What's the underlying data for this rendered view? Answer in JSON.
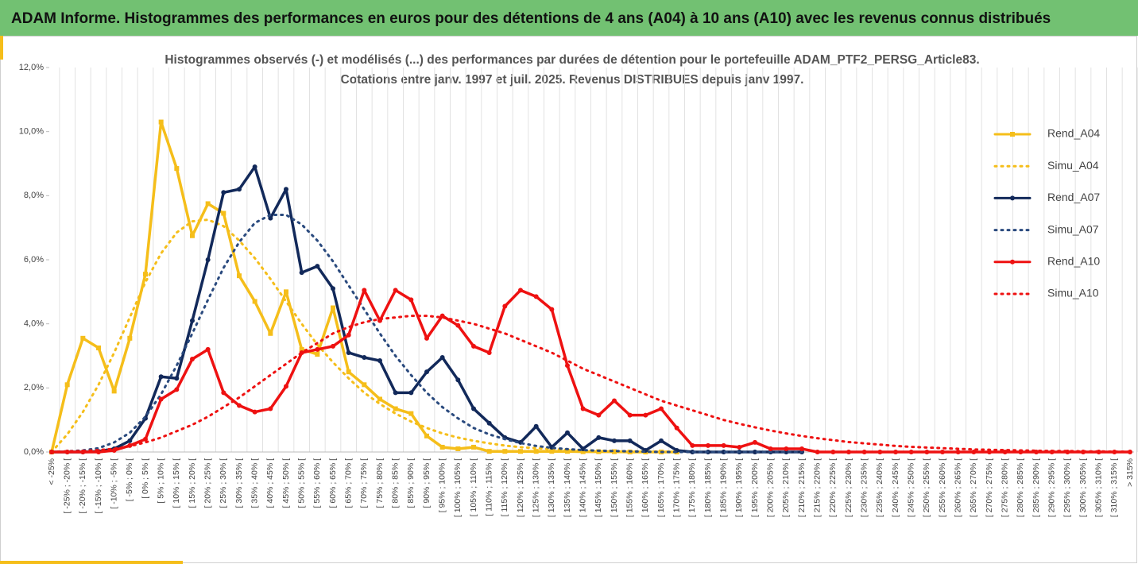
{
  "header": {
    "title": "ADAM Informe. Histogrammes des performances en euros pour des détentions de 4 ans (A04) à 10 ans (A10) avec les revenus connus distribués"
  },
  "chart_data": {
    "type": "line",
    "title": "Histogrammes observés (-) et modélisés (...) des performances par durées de détention pour le portefeuille ADAM_PTF2_PERSG_Article83.",
    "subtitle": "Cotations entre janv. 1997 et juil. 2025. Revenus DISTRIBUES depuis janv 1997.",
    "categories": [
      "< -25%",
      "[ -25% ; -20% [",
      "[ -20% ; -15% [",
      "[ -15% ; -10% [",
      "[ -10% ; -5% [",
      "[ -5% ; 0% [",
      "[ 0% ; 5% [",
      "[ 5% ; 10% [",
      "[ 10% ; 15% [",
      "[ 15% ; 20% [",
      "[ 20% ; 25% [",
      "[ 25% ; 30% [",
      "[ 30% ; 35% [",
      "[ 35% ; 40% [",
      "[ 40% ; 45% [",
      "[ 45% ; 50% [",
      "[ 50% ; 55% [",
      "[ 55% ; 60% [",
      "[ 60% ; 65% [",
      "[ 65% ; 70% [",
      "[ 70% ; 75% [",
      "[ 75% ; 80% [",
      "[ 80% ; 85% [",
      "[ 85% ; 90% [",
      "[ 90% ; 95% [",
      "[ 95% ; 100% [",
      "[ 100% ; 105% [",
      "[ 105% ; 110% [",
      "[ 110% ; 115% [",
      "[ 115% ; 120% [",
      "[ 120% ; 125% [",
      "[ 125% ; 130% [",
      "[ 130% ; 135% [",
      "[ 135% ; 140% [",
      "[ 140% ; 145% [",
      "[ 145% ; 150% [",
      "[ 150% ; 155% [",
      "[ 155% ; 160% [",
      "[ 160% ; 165% [",
      "[ 165% ; 170% [",
      "[ 170% ; 175% [",
      "[ 175% ; 180% [",
      "[ 180% ; 185% [",
      "[ 185% ; 190% [",
      "[ 190% ; 195% [",
      "[ 195% ; 200% [",
      "[ 200% ; 205% [",
      "[ 205% ; 210% [",
      "[ 210% ; 215% [",
      "[ 215% ; 220% [",
      "[ 220% ; 225% [",
      "[ 225% ; 230% [",
      "[ 230% ; 235% [",
      "[ 235% ; 240% [",
      "[ 240% ; 245% [",
      "[ 245% ; 250% [",
      "[ 250% ; 255% [",
      "[ 255% ; 260% [",
      "[ 260% ; 265% [",
      "[ 265% ; 270% [",
      "[ 270% ; 275% [",
      "[ 275% ; 280% [",
      "[ 280% ; 285% [",
      "[ 285% ; 290% [",
      "[ 290% ; 295% [",
      "[ 295% ; 300% [",
      "[ 300% ; 305% [",
      "[ 305% ; 310% [",
      "[ 310% ; 315% [",
      "> 315%"
    ],
    "ylim": [
      0,
      12
    ],
    "yticks": [
      {
        "value": 0,
        "label": "0,0%"
      },
      {
        "value": 2,
        "label": "2,0%"
      },
      {
        "value": 4,
        "label": "4,0%"
      },
      {
        "value": 6,
        "label": "6,0%"
      },
      {
        "value": 8,
        "label": "8,0%"
      },
      {
        "value": 10,
        "label": "10,0%"
      },
      {
        "value": 12,
        "label": "12,0%"
      }
    ],
    "grid": "x",
    "legend": "right",
    "series": [
      {
        "name": "Rend_A04",
        "color": "#f5be1a",
        "dashed": false,
        "marker": "square",
        "values": [
          0,
          2.1,
          3.55,
          3.25,
          1.9,
          3.55,
          5.55,
          10.3,
          8.85,
          6.75,
          7.75,
          7.45,
          5.5,
          4.7,
          3.7,
          5.0,
          3.2,
          3.05,
          4.5,
          2.5,
          2.1,
          1.65,
          1.35,
          1.2,
          0.5,
          0.15,
          0.1,
          0.15,
          0.02,
          0.02,
          0.02,
          0.02,
          0.02,
          0.02,
          0.01,
          0.01,
          0.01,
          0,
          0,
          0,
          0,
          null,
          null,
          null,
          null,
          null,
          null,
          null,
          null,
          null,
          null,
          null,
          null,
          null,
          null,
          null,
          null,
          null,
          null,
          null,
          null,
          null,
          null,
          null,
          null,
          null,
          null,
          null,
          null,
          null
        ]
      },
      {
        "name": "Simu_A04",
        "color": "#f5be1a",
        "dashed": true,
        "marker": null,
        "values": [
          0,
          0.55,
          1.25,
          2.1,
          3.1,
          4.2,
          5.3,
          6.2,
          6.85,
          7.2,
          7.25,
          7.05,
          6.6,
          6.05,
          5.4,
          4.7,
          4.0,
          3.35,
          2.8,
          2.3,
          1.85,
          1.5,
          1.2,
          0.95,
          0.75,
          0.58,
          0.45,
          0.35,
          0.27,
          0.2,
          0.15,
          0.12,
          0.09,
          0.07,
          0.05,
          0.04,
          0.03,
          0.02,
          0.02,
          0.01,
          0.01,
          null,
          null,
          null,
          null,
          null,
          null,
          null,
          null,
          null,
          null,
          null,
          null,
          null,
          null,
          null,
          null,
          null,
          null,
          null,
          null,
          null,
          null,
          null,
          null,
          null,
          null,
          null,
          null,
          null
        ]
      },
      {
        "name": "Rend_A07",
        "color": "#12295a",
        "dashed": false,
        "marker": "circle",
        "values": [
          0,
          0,
          0,
          0.02,
          0.1,
          0.35,
          1.05,
          2.35,
          2.3,
          4.1,
          6.0,
          8.1,
          8.2,
          8.9,
          7.3,
          8.2,
          5.6,
          5.8,
          5.1,
          3.1,
          2.95,
          2.85,
          1.85,
          1.85,
          2.5,
          2.95,
          2.25,
          1.35,
          0.9,
          0.45,
          0.3,
          0.8,
          0.15,
          0.6,
          0.1,
          0.45,
          0.35,
          0.35,
          0.05,
          0.35,
          0.05,
          0,
          0,
          0,
          0,
          0,
          0,
          0,
          0,
          null,
          null,
          null,
          null,
          null,
          null,
          null,
          null,
          null,
          null,
          null,
          null,
          null,
          null,
          null,
          null,
          null,
          null,
          null,
          null,
          null
        ]
      },
      {
        "name": "Simu_A07",
        "color": "#2a4a7e",
        "dashed": true,
        "marker": null,
        "values": [
          0,
          0.02,
          0.05,
          0.12,
          0.3,
          0.6,
          1.1,
          1.8,
          2.7,
          3.7,
          4.75,
          5.75,
          6.55,
          7.15,
          7.4,
          7.4,
          7.1,
          6.6,
          5.95,
          5.2,
          4.45,
          3.7,
          3.0,
          2.4,
          1.85,
          1.4,
          1.05,
          0.75,
          0.55,
          0.4,
          0.28,
          0.19,
          0.13,
          0.09,
          0.06,
          0.04,
          0.03,
          0.02,
          0.01,
          0,
          0,
          0,
          0,
          0,
          0,
          0,
          0,
          0,
          0,
          null,
          null,
          null,
          null,
          null,
          null,
          null,
          null,
          null,
          null,
          null,
          null,
          null,
          null,
          null,
          null,
          null,
          null,
          null,
          null,
          null
        ]
      },
      {
        "name": "Rend_A10",
        "color": "#ee1111",
        "dashed": false,
        "marker": "circle",
        "values": [
          0,
          0,
          0,
          0,
          0.05,
          0.2,
          0.4,
          1.65,
          1.95,
          2.9,
          3.2,
          1.85,
          1.45,
          1.25,
          1.35,
          2.05,
          3.1,
          3.2,
          3.3,
          3.65,
          5.05,
          4.1,
          5.05,
          4.75,
          3.55,
          4.25,
          3.95,
          3.3,
          3.1,
          4.55,
          5.05,
          4.85,
          4.45,
          2.7,
          1.35,
          1.15,
          1.6,
          1.15,
          1.15,
          1.35,
          0.75,
          0.2,
          0.2,
          0.2,
          0.15,
          0.3,
          0.1,
          0.1,
          0.1,
          0,
          0,
          0,
          0,
          0,
          0,
          0,
          0,
          0,
          0,
          0,
          0,
          0,
          0,
          0,
          0,
          0,
          0,
          0,
          0,
          0
        ]
      },
      {
        "name": "Simu_A10",
        "color": "#ee1111",
        "dashed": true,
        "marker": null,
        "values": [
          0,
          0.02,
          0.03,
          0.06,
          0.1,
          0.18,
          0.3,
          0.45,
          0.65,
          0.85,
          1.1,
          1.4,
          1.7,
          2.05,
          2.4,
          2.75,
          3.1,
          3.4,
          3.7,
          3.9,
          4.05,
          4.15,
          4.2,
          4.25,
          4.25,
          4.2,
          4.1,
          4.0,
          3.85,
          3.7,
          3.5,
          3.3,
          3.1,
          2.85,
          2.6,
          2.4,
          2.2,
          2.0,
          1.8,
          1.6,
          1.45,
          1.3,
          1.15,
          1.0,
          0.88,
          0.77,
          0.67,
          0.58,
          0.5,
          0.43,
          0.37,
          0.31,
          0.27,
          0.23,
          0.19,
          0.16,
          0.14,
          0.12,
          0.1,
          0.08,
          0.07,
          0.06,
          0.05,
          0.04,
          0.03,
          0.03,
          0.02,
          0.02,
          0.01,
          0.01
        ]
      }
    ]
  }
}
